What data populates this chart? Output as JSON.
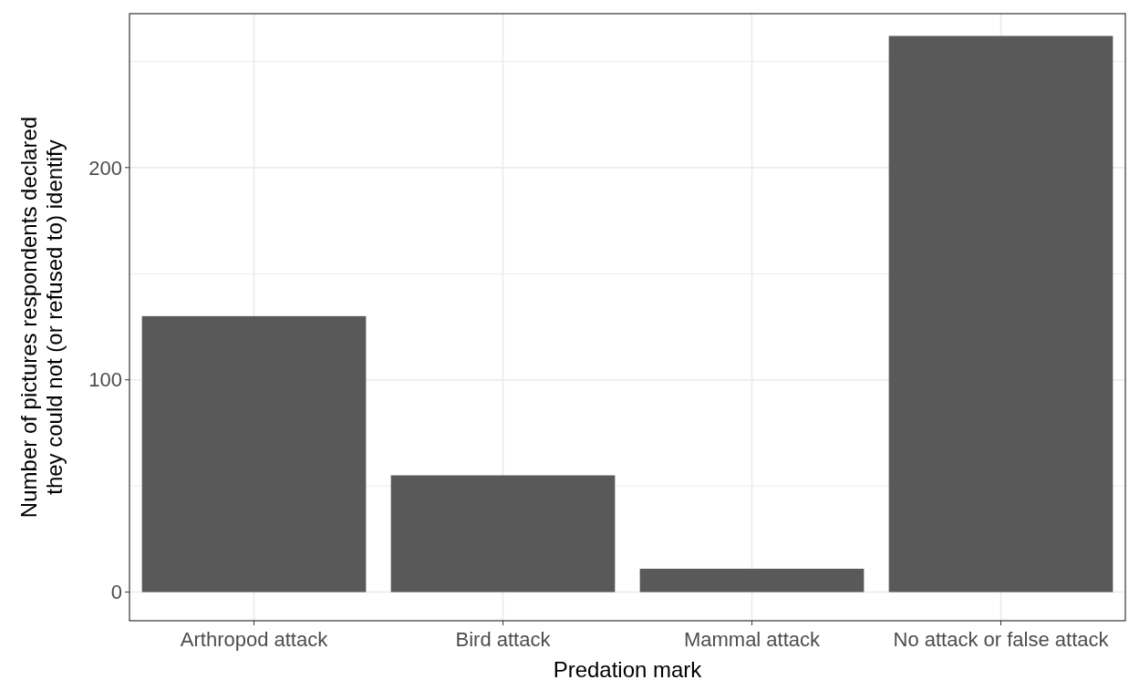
{
  "chart_data": {
    "type": "bar",
    "xlabel": "Predation mark",
    "ylabel": "Number of pictures respondents declared\nthey could not (or refused to) identify",
    "categories": [
      "Arthropod attack",
      "Bird attack",
      "Mammal attack",
      "No attack or false attack"
    ],
    "values": [
      130,
      55,
      11,
      262
    ],
    "color": "#595959",
    "ylim": [
      -13.5,
      272.5
    ],
    "yticks": [
      0,
      {
        "value": 50,
        "label": null
      },
      100,
      {
        "value": 150,
        "label": null
      },
      200,
      {
        "value": 250,
        "label": null
      }
    ],
    "grid": true
  }
}
